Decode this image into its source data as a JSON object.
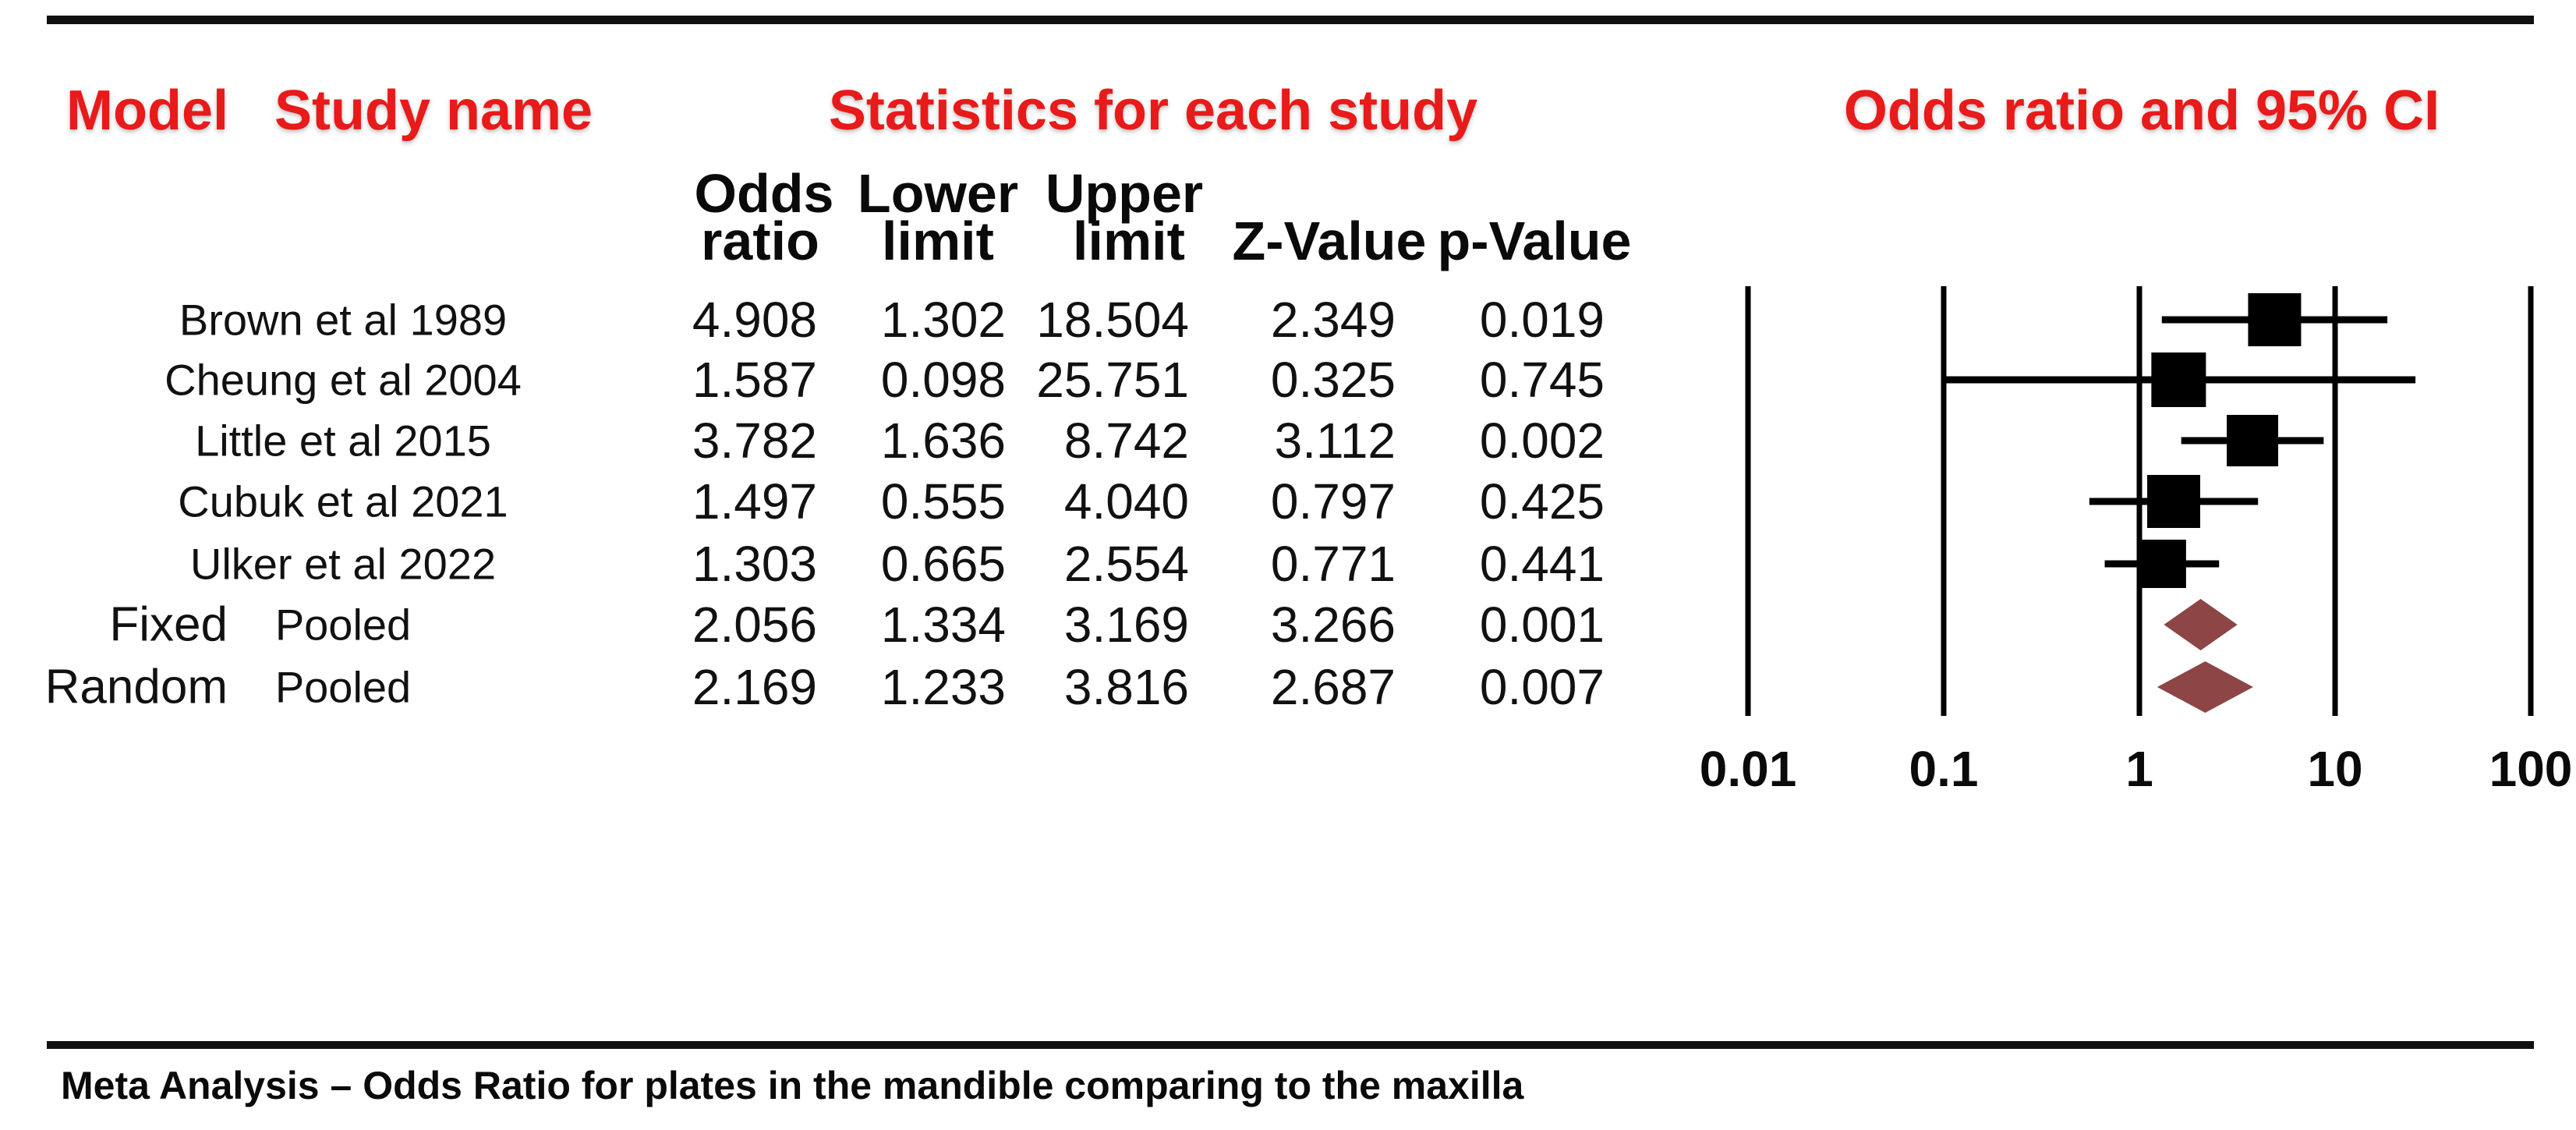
{
  "headers": {
    "model": "Model",
    "study": "Study name",
    "stats": "Statistics for each study",
    "plot": "Odds ratio and 95% CI"
  },
  "col_headers": {
    "odds_top": "Odds",
    "odds_bottom": "ratio",
    "lower_top": "Lower",
    "lower_bottom": "limit",
    "upper_top": "Upper",
    "upper_bottom": "limit",
    "z": "Z-Value",
    "p": "p-Value"
  },
  "caption": "Meta Analysis – Odds Ratio for plates in the mandible comparing to the maxilla",
  "colors": {
    "header_red": "#e81a1a",
    "marker_black": "#000000",
    "pooled_diamond": "#8d4545"
  },
  "chart_data": {
    "type": "forest",
    "x_scale": "log10",
    "x_ticks": [
      "0.01",
      "0.1",
      "1",
      "10",
      "100"
    ],
    "x_range": [
      0.01,
      100
    ],
    "grid": "vertical-reference-lines",
    "studies": [
      {
        "model": "",
        "study": "Brown et al 1989",
        "odds_ratio": 4.908,
        "lower_limit": 1.302,
        "upper_limit": 18.504,
        "z_value": 2.349,
        "p_value": 0.019,
        "marker": "square"
      },
      {
        "model": "",
        "study": "Cheung et al 2004",
        "odds_ratio": 1.587,
        "lower_limit": 0.098,
        "upper_limit": 25.751,
        "z_value": 0.325,
        "p_value": 0.745,
        "marker": "square"
      },
      {
        "model": "",
        "study": "Little et al 2015",
        "odds_ratio": 3.782,
        "lower_limit": 1.636,
        "upper_limit": 8.742,
        "z_value": 3.112,
        "p_value": 0.002,
        "marker": "square"
      },
      {
        "model": "",
        "study": "Cubuk et al 2021",
        "odds_ratio": 1.497,
        "lower_limit": 0.555,
        "upper_limit": 4.04,
        "z_value": 0.797,
        "p_value": 0.425,
        "marker": "square"
      },
      {
        "model": "",
        "study": "Ulker et al 2022",
        "odds_ratio": 1.303,
        "lower_limit": 0.665,
        "upper_limit": 2.554,
        "z_value": 0.771,
        "p_value": 0.441,
        "marker": "square"
      },
      {
        "model": "Fixed",
        "study": "Pooled",
        "odds_ratio": 2.056,
        "lower_limit": 1.334,
        "upper_limit": 3.169,
        "z_value": 3.266,
        "p_value": 0.001,
        "marker": "diamond"
      },
      {
        "model": "Random",
        "study": "Pooled",
        "odds_ratio": 2.169,
        "lower_limit": 1.233,
        "upper_limit": 3.816,
        "z_value": 2.687,
        "p_value": 0.007,
        "marker": "diamond"
      }
    ]
  }
}
